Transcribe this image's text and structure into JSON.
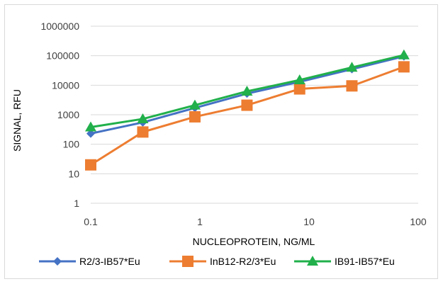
{
  "chart_data": {
    "type": "line",
    "title": "",
    "xlabel": "NUCLEOPROTEIN, NG/ML",
    "ylabel": "SIGNAL, RFU",
    "xscale": "log",
    "yscale": "log",
    "xlim": [
      0.1,
      100
    ],
    "ylim": [
      1,
      1000000
    ],
    "xticks": [
      "0.1",
      "1",
      "10",
      "100"
    ],
    "yticks": [
      "1",
      "10",
      "100",
      "1000",
      "10000",
      "100000",
      "1000000"
    ],
    "grid": "horizontal",
    "legend_position": "bottom",
    "x": [
      0.1,
      0.3,
      0.9,
      2.7,
      8.2,
      24.7,
      74
    ],
    "series": [
      {
        "name": "R2/3-IB57*Eu",
        "color": "#4472c4",
        "marker": "diamond",
        "values": [
          230,
          550,
          1700,
          5200,
          13000,
          35000,
          95000
        ]
      },
      {
        "name": "InB12-R2/3*Eu",
        "color": "#ed7d31",
        "marker": "square",
        "values": [
          20,
          260,
          850,
          2100,
          7500,
          9500,
          42000
        ]
      },
      {
        "name": "IB91-IB57*Eu",
        "color": "#21b04b",
        "marker": "triangle",
        "values": [
          380,
          720,
          2100,
          6200,
          15000,
          40000,
          105000
        ]
      }
    ]
  }
}
